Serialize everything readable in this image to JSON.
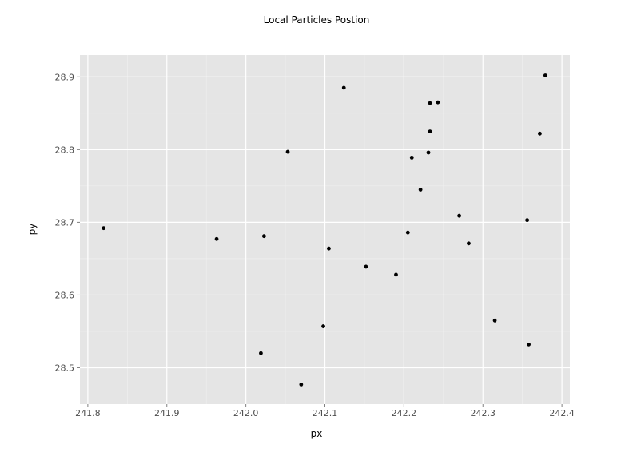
{
  "chart_data": {
    "type": "scatter",
    "title": "Local Particles Postion",
    "xlabel": "px",
    "ylabel": "py",
    "xlim": [
      241.79,
      242.41
    ],
    "ylim": [
      28.45,
      28.93
    ],
    "x_ticks": [
      241.8,
      241.9,
      242.0,
      242.1,
      242.2,
      242.3,
      242.4
    ],
    "x_tick_labels": [
      "241.8",
      "241.9",
      "242.0",
      "242.1",
      "242.2",
      "242.3",
      "242.4"
    ],
    "y_ticks": [
      28.5,
      28.6,
      28.7,
      28.8,
      28.9
    ],
    "y_tick_labels": [
      "28.5",
      "28.6",
      "28.7",
      "28.8",
      "28.9"
    ],
    "grid": true,
    "colors": {
      "panel": "#e5e5e5",
      "grid_major": "#ffffff",
      "grid_minor": "#f0f0f0",
      "points": "#000000"
    },
    "points": [
      {
        "x": 241.82,
        "y": 28.692
      },
      {
        "x": 241.963,
        "y": 28.677
      },
      {
        "x": 242.019,
        "y": 28.52
      },
      {
        "x": 242.023,
        "y": 28.681
      },
      {
        "x": 242.053,
        "y": 28.797
      },
      {
        "x": 242.07,
        "y": 28.477
      },
      {
        "x": 242.098,
        "y": 28.557
      },
      {
        "x": 242.105,
        "y": 28.664
      },
      {
        "x": 242.124,
        "y": 28.885
      },
      {
        "x": 242.152,
        "y": 28.639
      },
      {
        "x": 242.19,
        "y": 28.628
      },
      {
        "x": 242.205,
        "y": 28.686
      },
      {
        "x": 242.21,
        "y": 28.789
      },
      {
        "x": 242.221,
        "y": 28.745
      },
      {
        "x": 242.231,
        "y": 28.796
      },
      {
        "x": 242.233,
        "y": 28.864
      },
      {
        "x": 242.233,
        "y": 28.825
      },
      {
        "x": 242.243,
        "y": 28.865
      },
      {
        "x": 242.27,
        "y": 28.709
      },
      {
        "x": 242.282,
        "y": 28.671
      },
      {
        "x": 242.315,
        "y": 28.565
      },
      {
        "x": 242.356,
        "y": 28.703
      },
      {
        "x": 242.358,
        "y": 28.532
      },
      {
        "x": 242.372,
        "y": 28.822
      },
      {
        "x": 242.379,
        "y": 28.902
      }
    ]
  }
}
